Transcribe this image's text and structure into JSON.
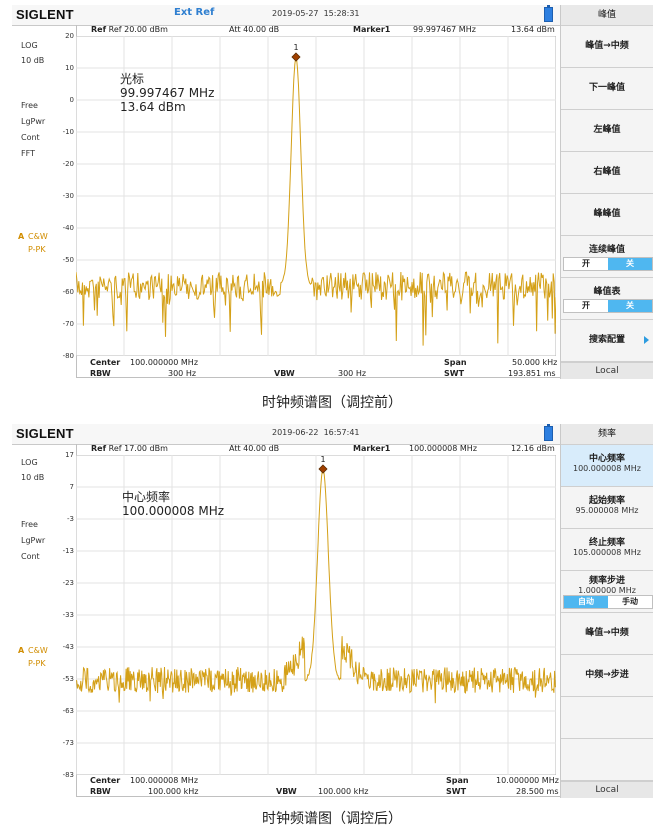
{
  "panel1": {
    "brand": "SIGLENT",
    "ext_ref": "Ext Ref",
    "date": "2019-05-27",
    "time": "15:28:31",
    "ref": "Ref  20.00 dBm",
    "att": "Att   40.00 dB",
    "marker_label": "Marker1",
    "marker_freq": "99.997467 MHz",
    "marker_level": "13.64 dBm",
    "left": [
      "LOG",
      "10 dB",
      "Free",
      "LgPwr",
      "Cont",
      "FFT"
    ],
    "trace_mode": "A",
    "trace_type": "C&W",
    "detector": "P-PK",
    "y_ticks": [
      "20",
      "10",
      "0",
      "-10",
      "-20",
      "-30",
      "-40",
      "-50",
      "-60",
      "-70",
      "-80"
    ],
    "annotation": [
      "光标",
      "99.997467 MHz",
      "13.64 dBm"
    ],
    "marker_num": "1",
    "center_label": "Center",
    "center_value": "100.000000 MHz",
    "span_label": "Span",
    "span_value": "50.000 kHz",
    "rbw_label": "RBW",
    "rbw_value": "300 Hz",
    "vbw_label": "VBW",
    "vbw_value": "300 Hz",
    "swt_label": "SWT",
    "swt_value": "193.851 ms",
    "menu_title": "峰值",
    "menu": [
      "峰值→中频",
      "下一峰值",
      "左峰值",
      "右峰值",
      "峰峰值"
    ],
    "continuous_peak": "连续峰值",
    "peak_table": "峰值表",
    "toggle_on": "开",
    "toggle_off": "关",
    "search_config": "搜索配置",
    "local": "Local",
    "caption": "时钟频谱图（调控前）"
  },
  "panel2": {
    "brand": "SIGLENT",
    "date": "2019-06-22",
    "time": "16:57:41",
    "ref": "Ref  17.00 dBm",
    "att": "Att   40.00 dB",
    "marker_label": "Marker1",
    "marker_freq": "100.000008 MHz",
    "marker_level": "12.16 dBm",
    "left": [
      "LOG",
      "10 dB",
      "Free",
      "LgPwr",
      "Cont"
    ],
    "trace_mode": "A",
    "trace_type": "C&W",
    "detector": "P-PK",
    "y_ticks": [
      "17",
      "7",
      "-3",
      "-13",
      "-23",
      "-33",
      "-43",
      "-53",
      "-63",
      "-73",
      "-83"
    ],
    "annotation": [
      "中心频率",
      "100.000008 MHz"
    ],
    "marker_num": "1",
    "center_label": "Center",
    "center_value": "100.000008 MHz",
    "span_label": "Span",
    "span_value": "10.000000 MHz",
    "rbw_label": "RBW",
    "rbw_value": "100.000 kHz",
    "vbw_label": "VBW",
    "vbw_value": "100.000 kHz",
    "swt_label": "SWT",
    "swt_value": "28.500 ms",
    "menu_title": "频率",
    "center_freq_label": "中心频率",
    "center_freq_value": "100.000008 MHz",
    "start_freq_label": "起始频率",
    "start_freq_value": "95.000008 MHz",
    "stop_freq_label": "终止频率",
    "stop_freq_value": "105.000008 MHz",
    "step_label": "频率步进",
    "step_value": "1.000000 MHz",
    "auto": "自动",
    "manual": "手动",
    "peak_to_center": "峰值→中频",
    "center_to_step": "中频→步进",
    "local": "Local",
    "caption": "时钟频谱图（调控后）"
  },
  "colors": {
    "trace": "#d4a017",
    "marker": "#a04000",
    "accent": "#2d9ce0"
  }
}
